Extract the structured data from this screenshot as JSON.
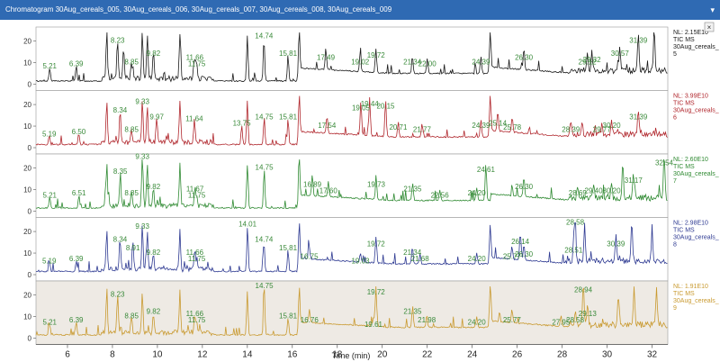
{
  "window": {
    "title": "Chromatogram  30Aug_cereals_005, 30Aug_cereals_006, 30Aug_cereals_007, 30Aug_cereals_008, 30Aug_cereals_009",
    "pin_icon": "pin-icon",
    "close_icon": "close-icon"
  },
  "chart_data": {
    "type": "line",
    "xlabel": "Time (min)",
    "xlim": [
      4.6,
      32.7
    ],
    "x_ticks": [
      6,
      8,
      10,
      12,
      14,
      16,
      18,
      20,
      22,
      24,
      26,
      28,
      30,
      32
    ],
    "ylim": [
      0,
      24
    ],
    "y_ticks": [
      0,
      10,
      20
    ],
    "panels": [
      {
        "name": "30Aug_cereals_005",
        "color": "#1a1a1a",
        "nl": "NL: 2.15E10",
        "tic": "TIC  MS",
        "file_line1": "30Aug_cereals_",
        "file_line2": "5",
        "background": "#ffffff",
        "peaks": [
          {
            "rt": 5.21,
            "y": 6,
            "label": "5.21"
          },
          {
            "rt": 6.39,
            "y": 7,
            "label": "6.39"
          },
          {
            "rt": 7.75,
            "y": 22,
            "label": ""
          },
          {
            "rt": 8.23,
            "y": 18,
            "label": "8.23"
          },
          {
            "rt": 8.5,
            "y": 14,
            "label": ""
          },
          {
            "rt": 8.85,
            "y": 8,
            "label": "8.85"
          },
          {
            "rt": 9.33,
            "y": 21,
            "label": ""
          },
          {
            "rt": 9.55,
            "y": 19,
            "label": ""
          },
          {
            "rt": 9.82,
            "y": 12,
            "label": "9.82"
          },
          {
            "rt": 11.0,
            "y": 21,
            "label": ""
          },
          {
            "rt": 11.66,
            "y": 10,
            "label": "11.66"
          },
          {
            "rt": 11.75,
            "y": 7,
            "label": "11.75"
          },
          {
            "rt": 14.0,
            "y": 21,
            "label": ""
          },
          {
            "rt": 14.74,
            "y": 20,
            "label": "14.74"
          },
          {
            "rt": 15.81,
            "y": 12,
            "label": "15.81"
          },
          {
            "rt": 16.3,
            "y": 21,
            "label": ""
          },
          {
            "rt": 17.49,
            "y": 10,
            "label": "17.49"
          },
          {
            "rt": 19.02,
            "y": 8,
            "label": "19.02"
          },
          {
            "rt": 19.72,
            "y": 11,
            "label": "19.72"
          },
          {
            "rt": 21.34,
            "y": 8,
            "label": "21.34"
          },
          {
            "rt": 22.0,
            "y": 7,
            "label": "22.00"
          },
          {
            "rt": 24.39,
            "y": 8,
            "label": "24.39"
          },
          {
            "rt": 24.8,
            "y": 20,
            "label": ""
          },
          {
            "rt": 26.3,
            "y": 10,
            "label": "26.30"
          },
          {
            "rt": 29.12,
            "y": 8,
            "label": "29.12"
          },
          {
            "rt": 29.32,
            "y": 9,
            "label": "29.32"
          },
          {
            "rt": 30.57,
            "y": 12,
            "label": "30.57"
          },
          {
            "rt": 31.39,
            "y": 18,
            "label": "31.39"
          },
          {
            "rt": 32.1,
            "y": 20,
            "label": ""
          }
        ]
      },
      {
        "name": "30Aug_cereals_006",
        "color": "#b0262c",
        "nl": "NL: 3.99E10",
        "tic": "TIC  MS",
        "file_line1": "30Aug_cereals_",
        "file_line2": "6",
        "background": "#ffffff",
        "peaks": [
          {
            "rt": 5.19,
            "y": 4,
            "label": "5.19"
          },
          {
            "rt": 6.5,
            "y": 5,
            "label": "6.50"
          },
          {
            "rt": 7.75,
            "y": 20,
            "label": ""
          },
          {
            "rt": 8.34,
            "y": 15,
            "label": "8.34"
          },
          {
            "rt": 8.85,
            "y": 6,
            "label": "8.85"
          },
          {
            "rt": 9.33,
            "y": 19,
            "label": "9.33"
          },
          {
            "rt": 9.55,
            "y": 17,
            "label": ""
          },
          {
            "rt": 9.97,
            "y": 12,
            "label": "9.97"
          },
          {
            "rt": 11.0,
            "y": 20,
            "label": ""
          },
          {
            "rt": 11.64,
            "y": 11,
            "label": "11.64"
          },
          {
            "rt": 13.75,
            "y": 9,
            "label": "13.75"
          },
          {
            "rt": 14.0,
            "y": 20,
            "label": ""
          },
          {
            "rt": 14.75,
            "y": 12,
            "label": "14.75"
          },
          {
            "rt": 15.81,
            "y": 12,
            "label": "15.81"
          },
          {
            "rt": 16.3,
            "y": 20,
            "label": ""
          },
          {
            "rt": 17.54,
            "y": 8,
            "label": "17.54"
          },
          {
            "rt": 19.05,
            "y": 16,
            "label": "19.05"
          },
          {
            "rt": 19.44,
            "y": 18,
            "label": "19.44"
          },
          {
            "rt": 20.15,
            "y": 17,
            "label": "20.15"
          },
          {
            "rt": 20.71,
            "y": 7,
            "label": "20.71"
          },
          {
            "rt": 21.77,
            "y": 6,
            "label": "21.77"
          },
          {
            "rt": 24.39,
            "y": 8,
            "label": "24.39"
          },
          {
            "rt": 24.8,
            "y": 20,
            "label": ""
          },
          {
            "rt": 25.14,
            "y": 9,
            "label": "25.14"
          },
          {
            "rt": 25.78,
            "y": 7,
            "label": "25.78"
          },
          {
            "rt": 28.39,
            "y": 6,
            "label": "28.39"
          },
          {
            "rt": 29.77,
            "y": 6,
            "label": "29.77"
          },
          {
            "rt": 30.2,
            "y": 8,
            "label": "30.20"
          },
          {
            "rt": 31.39,
            "y": 12,
            "label": "31.39"
          }
        ]
      },
      {
        "name": "30Aug_cereals_007",
        "color": "#2f8a32",
        "nl": "NL: 2.60E10",
        "tic": "TIC  MS",
        "file_line1": "30Aug_cereals_",
        "file_line2": "7",
        "background": "#ffffff",
        "peaks": [
          {
            "rt": 5.21,
            "y": 5,
            "label": "5.21"
          },
          {
            "rt": 6.51,
            "y": 6,
            "label": "6.51"
          },
          {
            "rt": 7.75,
            "y": 20,
            "label": ""
          },
          {
            "rt": 8.35,
            "y": 16,
            "label": "8.35"
          },
          {
            "rt": 8.85,
            "y": 6,
            "label": "8.85"
          },
          {
            "rt": 9.33,
            "y": 23,
            "label": "9.33"
          },
          {
            "rt": 9.55,
            "y": 20,
            "label": ""
          },
          {
            "rt": 9.82,
            "y": 9,
            "label": "9.82"
          },
          {
            "rt": 11.0,
            "y": 20,
            "label": ""
          },
          {
            "rt": 11.67,
            "y": 8,
            "label": "11.67"
          },
          {
            "rt": 11.75,
            "y": 5,
            "label": "11.75"
          },
          {
            "rt": 14.0,
            "y": 20,
            "label": ""
          },
          {
            "rt": 14.75,
            "y": 18,
            "label": "14.75"
          },
          {
            "rt": 16.3,
            "y": 20,
            "label": ""
          },
          {
            "rt": 16.89,
            "y": 10,
            "label": "16.89"
          },
          {
            "rt": 17.6,
            "y": 7,
            "label": "17.60"
          },
          {
            "rt": 19.73,
            "y": 10,
            "label": "19.73"
          },
          {
            "rt": 21.35,
            "y": 8,
            "label": "21.35"
          },
          {
            "rt": 22.56,
            "y": 5,
            "label": "22.56"
          },
          {
            "rt": 24.2,
            "y": 6,
            "label": "24.20"
          },
          {
            "rt": 24.61,
            "y": 17,
            "label": "24.61"
          },
          {
            "rt": 26.3,
            "y": 9,
            "label": "26.30"
          },
          {
            "rt": 28.69,
            "y": 6,
            "label": "28.69"
          },
          {
            "rt": 29.4,
            "y": 7,
            "label": "29.40"
          },
          {
            "rt": 30.2,
            "y": 7,
            "label": "30.20"
          },
          {
            "rt": 30.7,
            "y": 17,
            "label": ""
          },
          {
            "rt": 31.17,
            "y": 12,
            "label": "31.17"
          },
          {
            "rt": 32.54,
            "y": 20,
            "label": "32.54"
          }
        ]
      },
      {
        "name": "30Aug_cereals_008",
        "color": "#2e3a92",
        "nl": "NL: 2.98E10",
        "tic": "TIC  MS",
        "file_line1": "30Aug_cereals_",
        "file_line2": "8",
        "background": "#ffffff",
        "peaks": [
          {
            "rt": 5.19,
            "y": 4,
            "label": "5.19"
          },
          {
            "rt": 6.39,
            "y": 5,
            "label": "6.39"
          },
          {
            "rt": 7.75,
            "y": 18,
            "label": ""
          },
          {
            "rt": 8.34,
            "y": 14,
            "label": "8.34"
          },
          {
            "rt": 8.91,
            "y": 10,
            "label": "8.91"
          },
          {
            "rt": 9.33,
            "y": 20,
            "label": "9.33"
          },
          {
            "rt": 9.55,
            "y": 17,
            "label": ""
          },
          {
            "rt": 9.82,
            "y": 8,
            "label": "9.82"
          },
          {
            "rt": 11.0,
            "y": 18,
            "label": ""
          },
          {
            "rt": 11.66,
            "y": 8,
            "label": "11.66"
          },
          {
            "rt": 11.75,
            "y": 5,
            "label": "11.75"
          },
          {
            "rt": 14.01,
            "y": 21,
            "label": "14.01"
          },
          {
            "rt": 14.74,
            "y": 14,
            "label": "14.74"
          },
          {
            "rt": 15.81,
            "y": 10,
            "label": "15.81"
          },
          {
            "rt": 16.3,
            "y": 20,
            "label": ""
          },
          {
            "rt": 16.75,
            "y": 6,
            "label": "16.75"
          },
          {
            "rt": 19.03,
            "y": 4,
            "label": "19.03"
          },
          {
            "rt": 19.72,
            "y": 12,
            "label": "19.72"
          },
          {
            "rt": 21.34,
            "y": 8,
            "label": "21.34"
          },
          {
            "rt": 21.68,
            "y": 5,
            "label": "21.68"
          },
          {
            "rt": 24.2,
            "y": 5,
            "label": "24.20"
          },
          {
            "rt": 24.8,
            "y": 18,
            "label": ""
          },
          {
            "rt": 25.77,
            "y": 6,
            "label": "25.77"
          },
          {
            "rt": 26.14,
            "y": 13,
            "label": "26.14"
          },
          {
            "rt": 26.3,
            "y": 7,
            "label": "26.30"
          },
          {
            "rt": 28.51,
            "y": 9,
            "label": "28.51"
          },
          {
            "rt": 28.58,
            "y": 22,
            "label": "28.58"
          },
          {
            "rt": 29.0,
            "y": 18,
            "label": ""
          },
          {
            "rt": 30.39,
            "y": 12,
            "label": "30.39"
          },
          {
            "rt": 31.1,
            "y": 18,
            "label": ""
          },
          {
            "rt": 32.0,
            "y": 16,
            "label": ""
          }
        ]
      },
      {
        "name": "30Aug_cereals_009",
        "color": "#c99a30",
        "nl": "NL: 1.91E10",
        "tic": "TIC  MS",
        "file_line1": "30Aug_cereals_",
        "file_line2": "9",
        "background": "#eeeae4",
        "peaks": [
          {
            "rt": 5.21,
            "y": 5,
            "label": "5.21"
          },
          {
            "rt": 6.39,
            "y": 6,
            "label": "6.39"
          },
          {
            "rt": 7.75,
            "y": 20,
            "label": ""
          },
          {
            "rt": 8.23,
            "y": 18,
            "label": "8.23"
          },
          {
            "rt": 8.85,
            "y": 8,
            "label": "8.85"
          },
          {
            "rt": 9.33,
            "y": 20,
            "label": ""
          },
          {
            "rt": 9.82,
            "y": 10,
            "label": "9.82"
          },
          {
            "rt": 11.0,
            "y": 19,
            "label": ""
          },
          {
            "rt": 11.66,
            "y": 9,
            "label": "11.66"
          },
          {
            "rt": 11.75,
            "y": 6,
            "label": "11.75"
          },
          {
            "rt": 14.0,
            "y": 20,
            "label": ""
          },
          {
            "rt": 14.75,
            "y": 22,
            "label": "14.75"
          },
          {
            "rt": 15.81,
            "y": 8,
            "label": "15.81"
          },
          {
            "rt": 16.3,
            "y": 19,
            "label": ""
          },
          {
            "rt": 16.76,
            "y": 6,
            "label": "16.76"
          },
          {
            "rt": 19.61,
            "y": 4,
            "label": "19.61"
          },
          {
            "rt": 19.72,
            "y": 19,
            "label": "19.72"
          },
          {
            "rt": 21.35,
            "y": 10,
            "label": "21.35"
          },
          {
            "rt": 21.98,
            "y": 6,
            "label": "21.98"
          },
          {
            "rt": 24.2,
            "y": 5,
            "label": "24.20"
          },
          {
            "rt": 24.8,
            "y": 19,
            "label": ""
          },
          {
            "rt": 25.77,
            "y": 6,
            "label": "25.77"
          },
          {
            "rt": 27.95,
            "y": 5,
            "label": "27.95"
          },
          {
            "rt": 28.58,
            "y": 6,
            "label": "28.58"
          },
          {
            "rt": 28.94,
            "y": 20,
            "label": "28.94"
          },
          {
            "rt": 29.13,
            "y": 9,
            "label": "29.13"
          },
          {
            "rt": 30.5,
            "y": 15,
            "label": ""
          },
          {
            "rt": 31.2,
            "y": 18,
            "label": ""
          },
          {
            "rt": 32.2,
            "y": 17,
            "label": ""
          }
        ]
      }
    ]
  }
}
